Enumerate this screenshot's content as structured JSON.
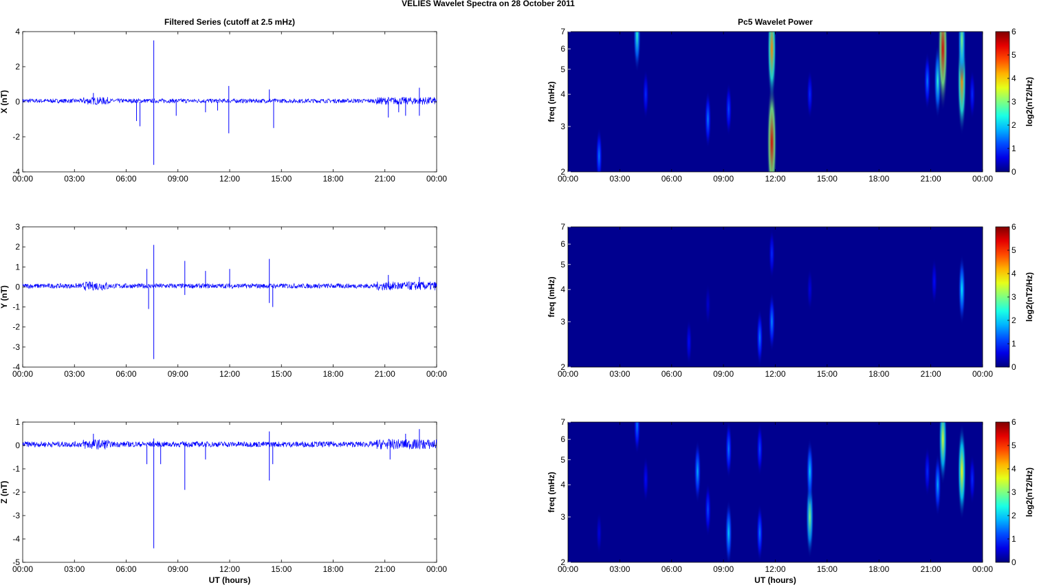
{
  "figure_title": "VELIES Wavelet Spectra on 28 October   2011",
  "time_ticks": [
    "00:00",
    "03:00",
    "06:00",
    "09:00",
    "12:00",
    "15:00",
    "18:00",
    "21:00",
    "00:00"
  ],
  "xlabel": "UT (hours)",
  "colors": {
    "series": "#0000ff",
    "bg_power": "#00008f"
  },
  "chart_data": [
    {
      "type": "line",
      "title": "Filtered Series (cutoff at 2.5 mHz)",
      "ylabel": "X (nT)",
      "ylim": [
        -4,
        4
      ],
      "yticks": [
        "4",
        "2",
        "0",
        "-2",
        "-4"
      ],
      "series": [
        {
          "values_note_unused": "",
          "x": [
            4.1,
            6.6,
            6.8,
            7.6,
            7.6,
            8.9,
            10.6,
            11.3,
            11.95,
            11.95,
            14.3,
            14.55,
            21.2,
            21.8,
            22.2,
            23.0,
            23.0
          ],
          "y": [
            0.5,
            -1.1,
            -1.4,
            3.5,
            -3.6,
            -0.8,
            -0.6,
            -0.5,
            0.9,
            -1.8,
            0.7,
            -1.5,
            -0.9,
            -0.6,
            -0.8,
            0.8,
            -0.8
          ]
        }
      ]
    },
    {
      "type": "line",
      "title": "",
      "ylabel": "Y (nT)",
      "ylim": [
        -4,
        3
      ],
      "yticks": [
        "3",
        "2",
        "1",
        "0",
        "-1",
        "-2",
        "-3",
        "-4"
      ],
      "series": [
        {
          "values_note_unused": "",
          "x": [
            7.2,
            7.3,
            7.6,
            7.6,
            9.4,
            9.4,
            10.6,
            12.0,
            14.3,
            14.3,
            14.5,
            21.2,
            23.0
          ],
          "y": [
            0.9,
            -1.1,
            2.1,
            -3.6,
            1.3,
            -0.4,
            0.8,
            0.9,
            1.4,
            -0.8,
            -1.0,
            0.6,
            0.5
          ]
        }
      ]
    },
    {
      "type": "line",
      "title": "",
      "ylabel": "Z (nT)",
      "ylim": [
        -5,
        1
      ],
      "yticks": [
        "1",
        "0",
        "-1",
        "-2",
        "-3",
        "-4",
        "-5"
      ],
      "xlabel": "UT (hours)",
      "series": [
        {
          "values_note_unused": "",
          "x": [
            4.1,
            7.2,
            7.6,
            7.6,
            8.0,
            9.4,
            10.6,
            14.3,
            14.3,
            14.5,
            21.3,
            22.2,
            23.0
          ],
          "y": [
            0.5,
            -0.8,
            0.3,
            -4.4,
            -0.8,
            -1.9,
            -0.6,
            0.6,
            -1.5,
            -0.8,
            -0.6,
            0.5,
            0.7
          ]
        }
      ]
    },
    {
      "type": "heatmap",
      "title": "Pc5 Wavelet Power",
      "ylabel": "freq (mHz)",
      "ylim": [
        2,
        7
      ],
      "yscale": "log",
      "yticks": [
        "7",
        "6",
        "5",
        "4",
        "3",
        "2"
      ],
      "colorbar_label": "log2(nT2/Hz)",
      "clim": [
        0,
        6
      ],
      "cticks": [
        "6",
        "5",
        "4",
        "3",
        "2",
        "1",
        "0"
      ],
      "blobs": [
        {
          "t": 1.8,
          "f": 2.3,
          "v": 1.5
        },
        {
          "t": 4.0,
          "f": 6.8,
          "v": 2.5
        },
        {
          "t": 4.5,
          "f": 4.0,
          "v": 1.0
        },
        {
          "t": 8.1,
          "f": 3.2,
          "v": 1.5
        },
        {
          "t": 9.3,
          "f": 3.5,
          "v": 1.2
        },
        {
          "t": 11.8,
          "f": 2.6,
          "v": 5.5
        },
        {
          "t": 11.8,
          "f": 6.0,
          "v": 4.5
        },
        {
          "t": 14.0,
          "f": 4.0,
          "v": 1.0
        },
        {
          "t": 20.8,
          "f": 4.5,
          "v": 1.5
        },
        {
          "t": 21.4,
          "f": 4.5,
          "v": 2.5
        },
        {
          "t": 21.7,
          "f": 6.0,
          "v": 5.5
        },
        {
          "t": 22.8,
          "f": 4.5,
          "v": 4.5
        },
        {
          "t": 22.8,
          "f": 6.5,
          "v": 3.0
        },
        {
          "t": 23.4,
          "f": 4.0,
          "v": 1.0
        }
      ]
    },
    {
      "type": "heatmap",
      "title": "",
      "ylabel": "freq (mHz)",
      "ylim": [
        2,
        7
      ],
      "yscale": "log",
      "yticks": [
        "7",
        "6",
        "5",
        "4",
        "3",
        "2"
      ],
      "colorbar_label": "log2(nT2/Hz)",
      "clim": [
        0,
        6
      ],
      "cticks": [
        "6",
        "5",
        "4",
        "3",
        "2",
        "1",
        "0"
      ],
      "blobs": [
        {
          "t": 7.0,
          "f": 2.5,
          "v": 0.8
        },
        {
          "t": 8.1,
          "f": 3.5,
          "v": 0.5
        },
        {
          "t": 11.1,
          "f": 2.6,
          "v": 1.5
        },
        {
          "t": 11.8,
          "f": 3.0,
          "v": 1.6
        },
        {
          "t": 11.8,
          "f": 5.5,
          "v": 1.0
        },
        {
          "t": 14.0,
          "f": 4.0,
          "v": 0.6
        },
        {
          "t": 21.2,
          "f": 4.3,
          "v": 0.8
        },
        {
          "t": 22.8,
          "f": 4.0,
          "v": 2.2
        }
      ]
    },
    {
      "type": "heatmap",
      "title": "",
      "ylabel": "freq (mHz)",
      "ylim": [
        2,
        7
      ],
      "yscale": "log",
      "yticks": [
        "7",
        "6",
        "5",
        "4",
        "3",
        "2"
      ],
      "colorbar_label": "log2(nT2/Hz)",
      "clim": [
        0,
        6
      ],
      "cticks": [
        "6",
        "5",
        "4",
        "3",
        "2",
        "1",
        "0"
      ],
      "xlabel": "UT (hours)",
      "blobs": [
        {
          "t": 1.8,
          "f": 2.6,
          "v": 0.6
        },
        {
          "t": 4.0,
          "f": 6.8,
          "v": 1.5
        },
        {
          "t": 4.5,
          "f": 4.2,
          "v": 0.8
        },
        {
          "t": 7.5,
          "f": 4.5,
          "v": 1.8
        },
        {
          "t": 8.1,
          "f": 3.2,
          "v": 1.2
        },
        {
          "t": 9.3,
          "f": 2.6,
          "v": 2.0
        },
        {
          "t": 9.3,
          "f": 5.5,
          "v": 1.5
        },
        {
          "t": 11.1,
          "f": 2.6,
          "v": 1.5
        },
        {
          "t": 11.1,
          "f": 5.5,
          "v": 1.2
        },
        {
          "t": 14.0,
          "f": 3.0,
          "v": 3.0
        },
        {
          "t": 14.0,
          "f": 4.5,
          "v": 2.0
        },
        {
          "t": 20.8,
          "f": 4.5,
          "v": 1.0
        },
        {
          "t": 21.4,
          "f": 4.0,
          "v": 1.8
        },
        {
          "t": 21.7,
          "f": 6.0,
          "v": 3.5
        },
        {
          "t": 22.8,
          "f": 4.5,
          "v": 3.8
        },
        {
          "t": 23.4,
          "f": 4.2,
          "v": 1.0
        }
      ]
    }
  ]
}
